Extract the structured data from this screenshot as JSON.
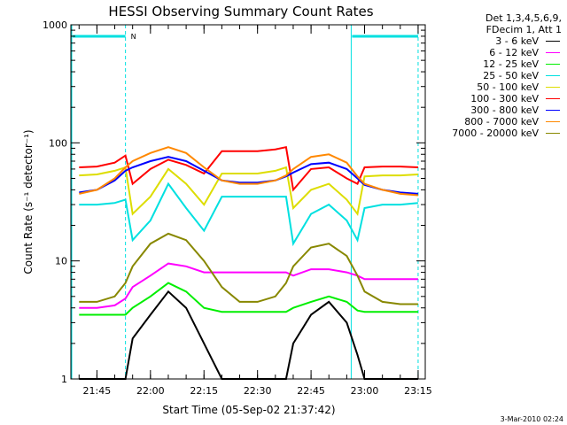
{
  "chart_data": {
    "type": "line",
    "title": "HESSI Observing Summary Count Rates",
    "xlabel": "Start Time (05-Sep-02 21:37:42)",
    "ylabel": "Count Rate (s⁻¹ detector⁻¹)",
    "yscale": "log",
    "ylim": [
      1,
      1000
    ],
    "xlim": [
      "21:37:42",
      "23:17"
    ],
    "x_ticks": [
      "21:45",
      "22:00",
      "22:15",
      "22:30",
      "22:45",
      "23:00",
      "23:15"
    ],
    "y_ticks": [
      "1",
      "10",
      "100",
      "1000"
    ],
    "grid": false,
    "legend_position": "right",
    "legend_header": [
      "Det 1,3,4,5,6,9,",
      "FDecim 1, Att 1"
    ],
    "markers": {
      "night_intervals": [
        [
          "21:37:42",
          "21:53"
        ],
        [
          "22:56",
          "23:15"
        ]
      ],
      "label": "N",
      "color": "#00e0e0"
    },
    "x": [
      "21:40",
      "21:45",
      "21:50",
      "21:53",
      "21:55",
      "22:00",
      "22:05",
      "22:10",
      "22:15",
      "22:20",
      "22:25",
      "22:30",
      "22:35",
      "22:38",
      "22:40",
      "22:45",
      "22:50",
      "22:55",
      "22:58",
      "23:00",
      "23:05",
      "23:10",
      "23:15"
    ],
    "series": [
      {
        "name": "3 - 6 keV",
        "color": "#000000",
        "values": [
          1.0,
          1.0,
          1.0,
          1.0,
          2.2,
          3.5,
          5.5,
          4.0,
          2.0,
          1.0,
          1.0,
          1.0,
          1.0,
          1.0,
          2.0,
          3.5,
          4.5,
          3.0,
          1.6,
          1.0,
          1.0,
          1.0,
          1.0
        ]
      },
      {
        "name": "6 - 12 keV",
        "color": "#ff00ff",
        "values": [
          4.0,
          4.0,
          4.2,
          4.8,
          6.0,
          7.5,
          9.5,
          9.0,
          8.0,
          8.0,
          8.0,
          8.0,
          8.0,
          8.0,
          7.5,
          8.5,
          8.5,
          8.0,
          7.5,
          7.0,
          7.0,
          7.0,
          7.0
        ]
      },
      {
        "name": "12 - 25 keV",
        "color": "#00ee00",
        "values": [
          3.5,
          3.5,
          3.5,
          3.5,
          4.0,
          5.0,
          6.5,
          5.5,
          4.0,
          3.7,
          3.7,
          3.7,
          3.7,
          3.7,
          4.0,
          4.5,
          5.0,
          4.5,
          3.8,
          3.7,
          3.7,
          3.7,
          3.7
        ]
      },
      {
        "name": "25 - 50 keV",
        "color": "#00e0e0",
        "values": [
          30,
          30,
          31,
          33,
          15,
          22,
          45,
          28,
          18,
          35,
          35,
          35,
          35,
          35,
          14,
          25,
          30,
          22,
          15,
          28,
          30,
          30,
          31
        ]
      },
      {
        "name": "50 - 100 keV",
        "color": "#dddd00",
        "values": [
          53,
          54,
          58,
          62,
          25,
          35,
          60,
          45,
          30,
          55,
          55,
          55,
          58,
          62,
          28,
          40,
          45,
          33,
          25,
          52,
          53,
          53,
          54
        ]
      },
      {
        "name": "100 - 300 keV",
        "color": "#ff0000",
        "values": [
          62,
          63,
          68,
          78,
          45,
          60,
          72,
          65,
          55,
          85,
          85,
          85,
          88,
          92,
          40,
          60,
          62,
          50,
          45,
          62,
          63,
          63,
          62
        ]
      },
      {
        "name": "300 - 800 keV",
        "color": "#0000ff",
        "values": [
          38,
          40,
          48,
          58,
          62,
          70,
          76,
          70,
          58,
          48,
          46,
          46,
          48,
          52,
          56,
          66,
          68,
          60,
          50,
          44,
          40,
          38,
          37
        ]
      },
      {
        "name": "800 - 7000 keV",
        "color": "#ff8800",
        "values": [
          37,
          40,
          50,
          62,
          70,
          82,
          92,
          82,
          62,
          48,
          45,
          45,
          48,
          53,
          60,
          76,
          80,
          68,
          52,
          45,
          40,
          37,
          36
        ]
      },
      {
        "name": "7000 - 20000 keV",
        "color": "#888800",
        "values": [
          4.5,
          4.5,
          5.0,
          6.5,
          9.0,
          14,
          17,
          15,
          10,
          6.0,
          4.5,
          4.5,
          5.0,
          6.5,
          9.0,
          13,
          14,
          11,
          7.5,
          5.5,
          4.5,
          4.3,
          4.3
        ]
      }
    ]
  },
  "footer_date": "3-Mar-2010 02:24"
}
